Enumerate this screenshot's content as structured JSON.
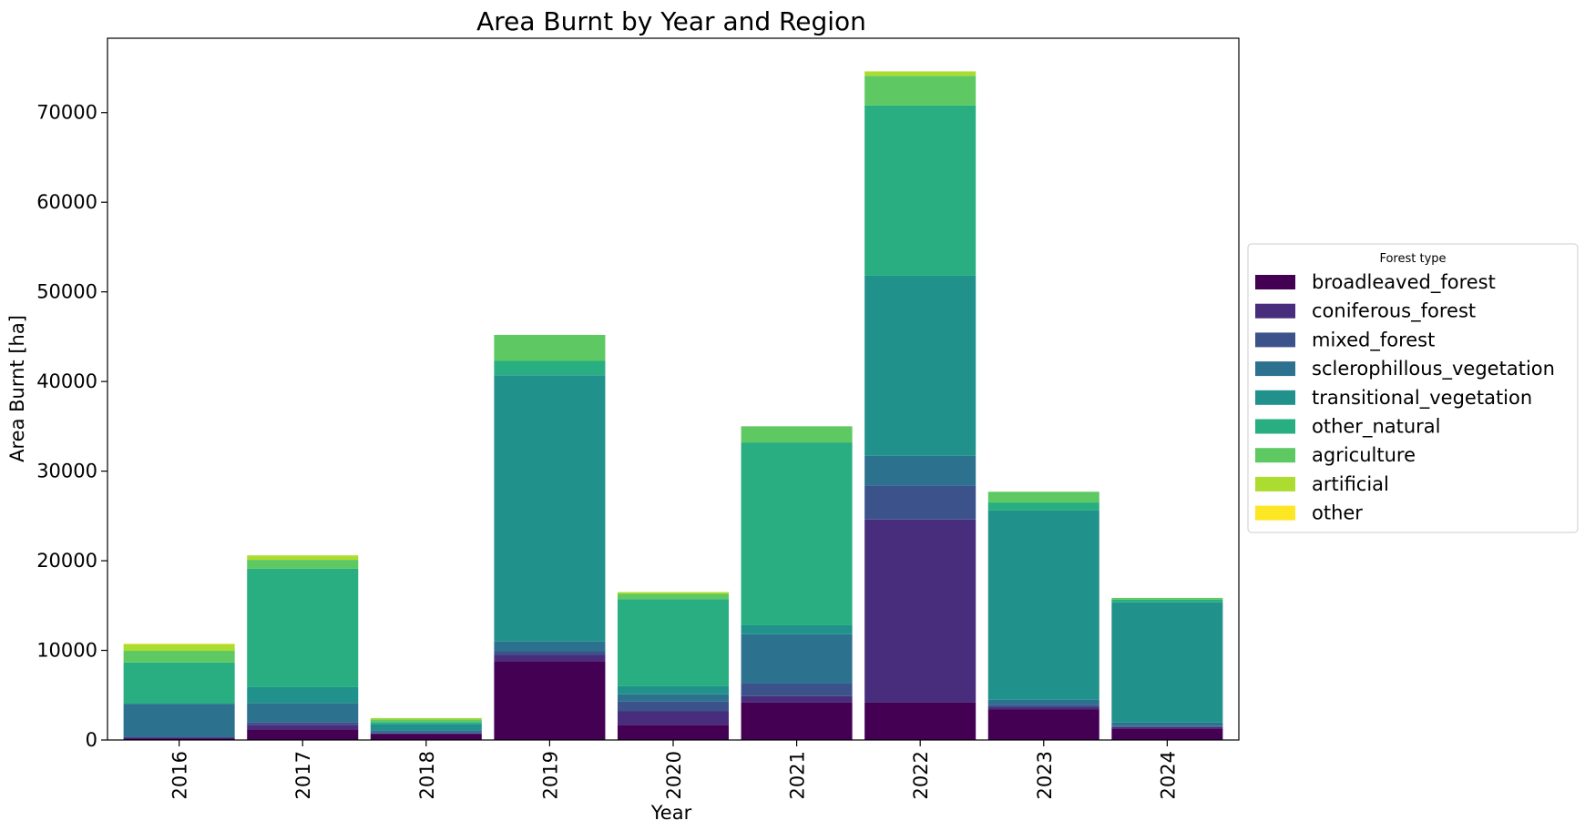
{
  "chart_data": {
    "type": "bar",
    "stacked": true,
    "title": "Area Burnt by Year and Region",
    "xlabel": "Year",
    "ylabel": "Area Burnt [ha]",
    "ylim": [
      0,
      78300
    ],
    "yticks": [
      0,
      10000,
      20000,
      30000,
      40000,
      50000,
      60000,
      70000
    ],
    "categories": [
      "2016",
      "2017",
      "2018",
      "2019",
      "2020",
      "2021",
      "2022",
      "2023",
      "2024"
    ],
    "legend_title": "Forest type",
    "legend_position": "center-right-outside",
    "grid": false,
    "series": [
      {
        "name": "broadleaved_forest",
        "color": "#440154",
        "values": [
          150,
          1200,
          700,
          8800,
          1700,
          4200,
          4200,
          3400,
          1300
        ]
      },
      {
        "name": "coniferous_forest",
        "color": "#472d7b",
        "values": [
          100,
          500,
          50,
          700,
          1500,
          700,
          20400,
          300,
          150
        ]
      },
      {
        "name": "mixed_forest",
        "color": "#3b528b",
        "values": [
          100,
          300,
          50,
          400,
          1100,
          1400,
          3800,
          200,
          100
        ]
      },
      {
        "name": "sclerophillous_vegetation",
        "color": "#2c728e",
        "values": [
          3700,
          2100,
          300,
          1100,
          800,
          5500,
          3300,
          600,
          400
        ]
      },
      {
        "name": "transitional_vegetation",
        "color": "#21918c",
        "values": [
          0,
          1800,
          700,
          29700,
          900,
          1000,
          20100,
          21100,
          13400
        ]
      },
      {
        "name": "other_natural",
        "color": "#28ae80",
        "values": [
          4600,
          13200,
          200,
          1600,
          9700,
          20400,
          19000,
          900,
          300
        ]
      },
      {
        "name": "agriculture",
        "color": "#5ec962",
        "values": [
          1300,
          1000,
          300,
          2900,
          600,
          1800,
          3300,
          1200,
          200
        ]
      },
      {
        "name": "artificial",
        "color": "#addc30",
        "values": [
          750,
          500,
          150,
          0,
          200,
          0,
          500,
          0,
          0
        ]
      },
      {
        "name": "other",
        "color": "#fde725",
        "values": [
          50,
          0,
          0,
          0,
          0,
          0,
          0,
          0,
          0
        ]
      }
    ]
  }
}
